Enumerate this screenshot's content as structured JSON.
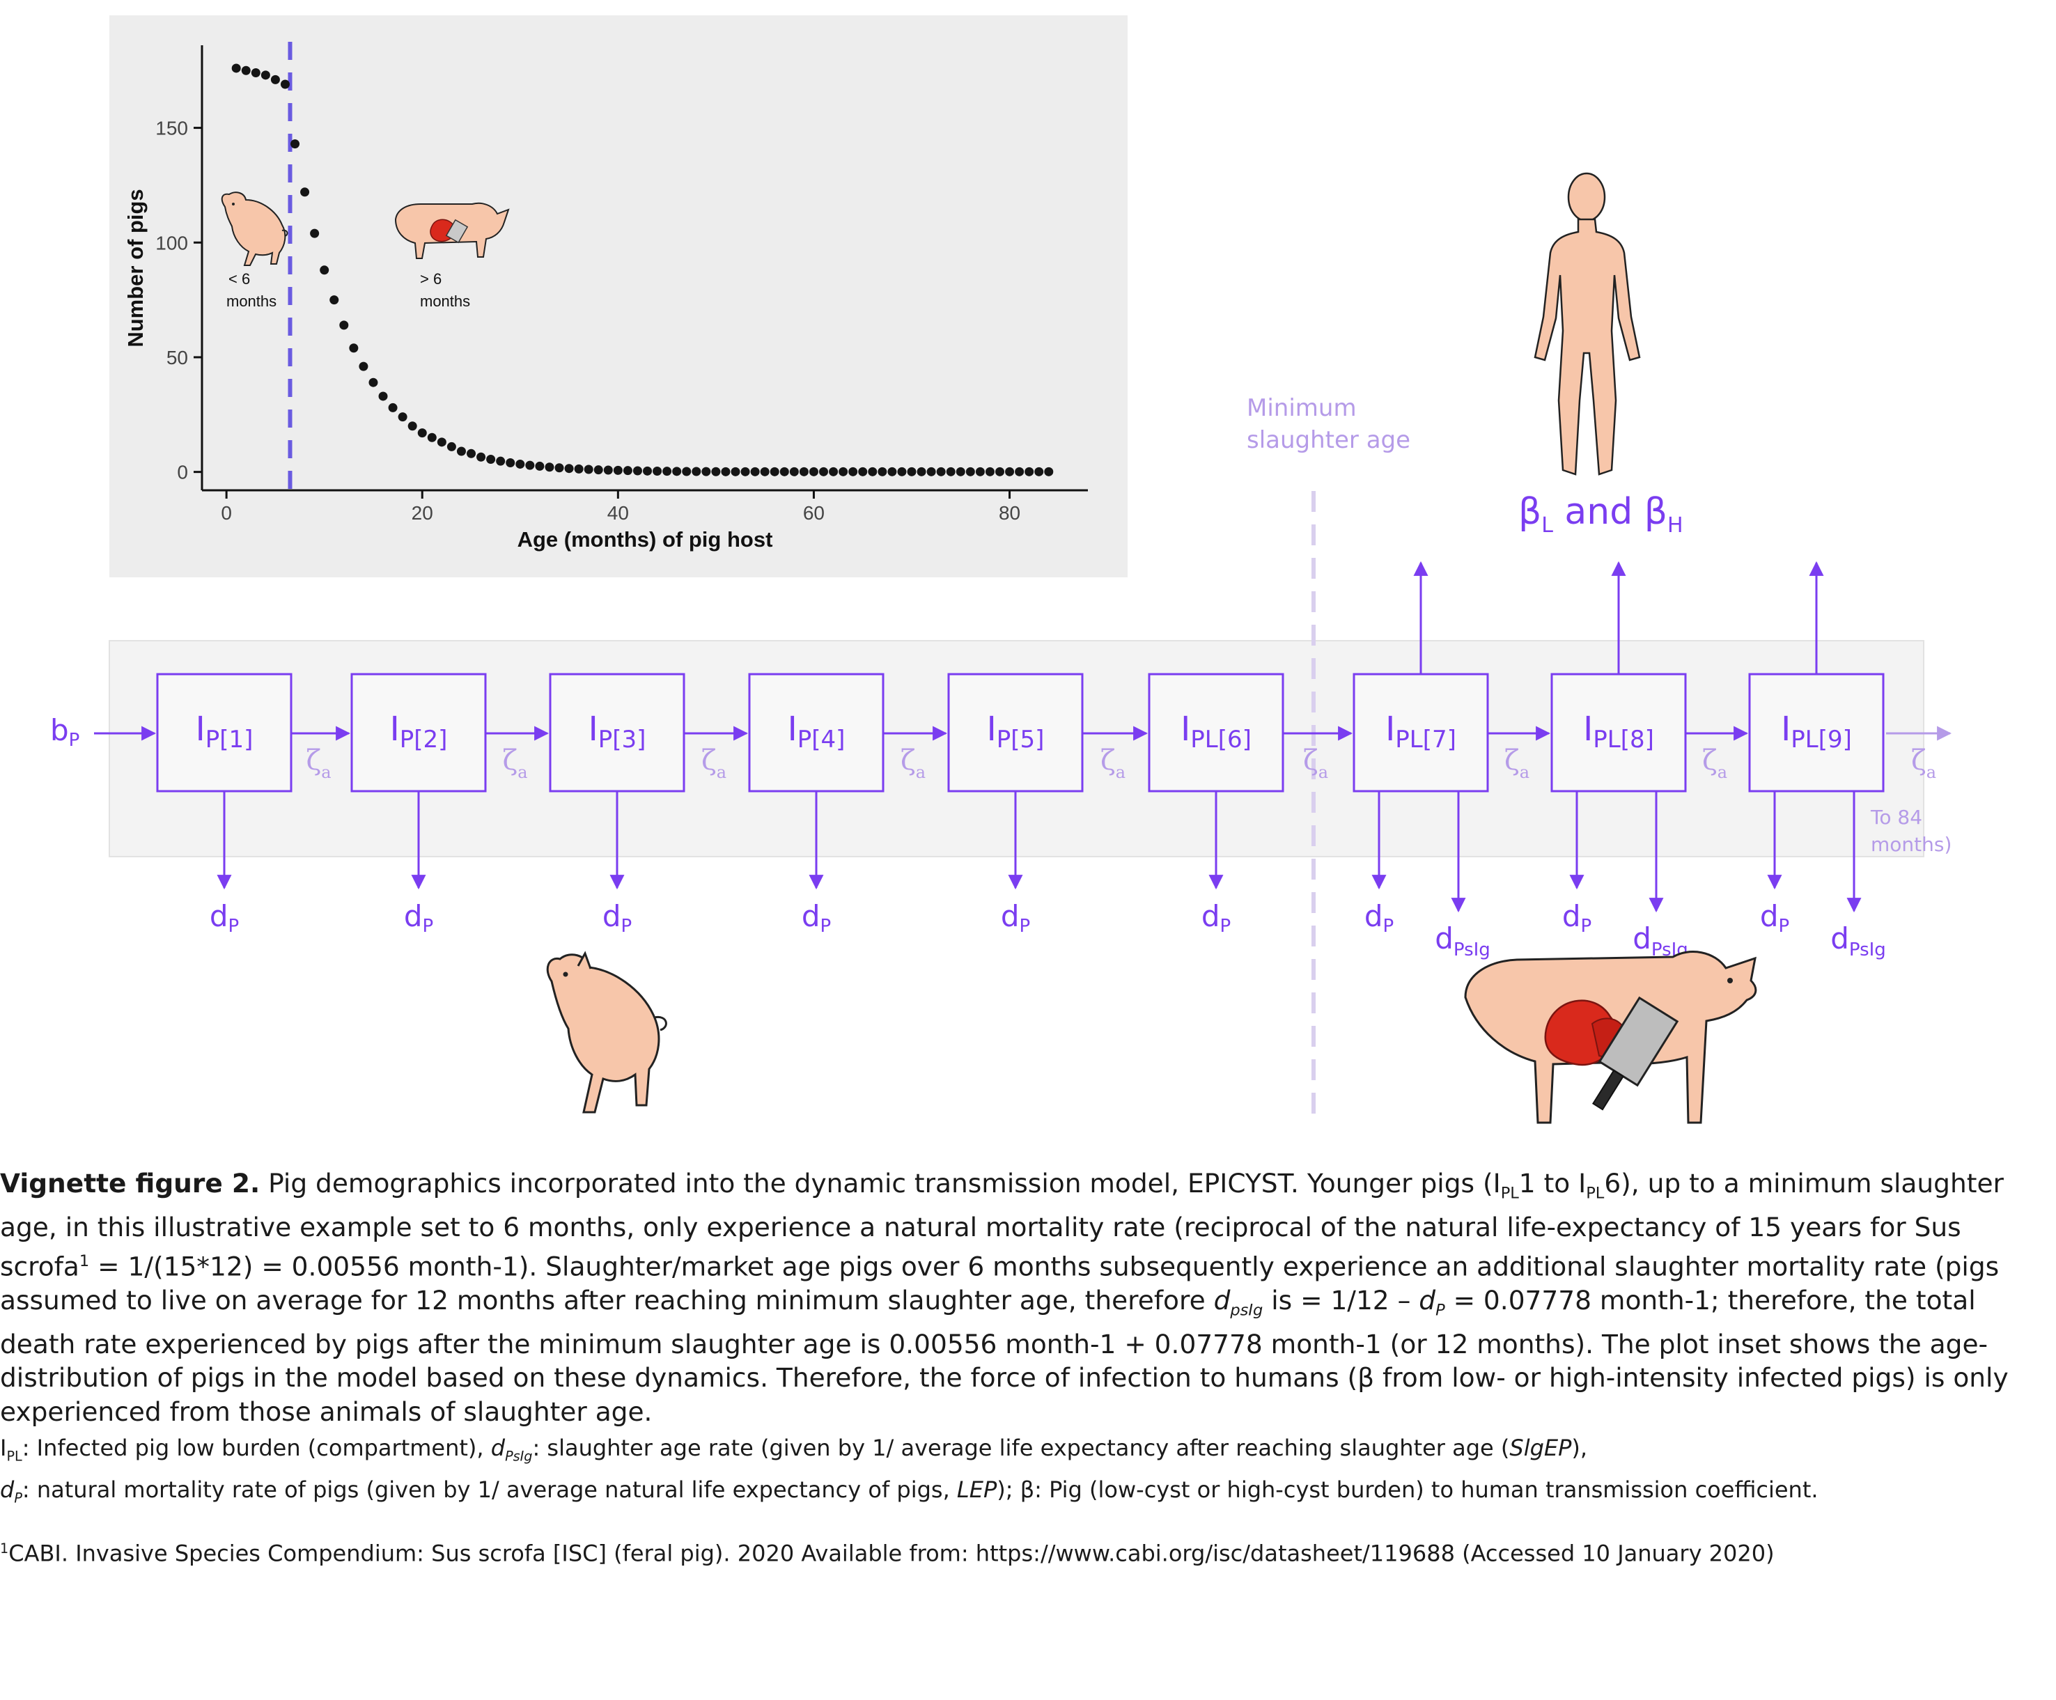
{
  "colors": {
    "purple": "#7a3df0",
    "light_purple": "#b59be8",
    "dashed_line": "#6a5be0",
    "panel_bg": "#ededed",
    "strip_bg": "#f3f3f3",
    "pig_skin": "#f7c6aa",
    "meat": "#d9291c"
  },
  "chart_data": {
    "type": "scatter",
    "title": "",
    "xlabel": "Age (months) of pig host",
    "ylabel": "Number of pigs",
    "xlim": [
      -2.5,
      88
    ],
    "ylim": [
      -8,
      186
    ],
    "xticks": [
      "0",
      "20",
      "40",
      "60",
      "80"
    ],
    "yticks": [
      "0",
      "50",
      "100",
      "150"
    ],
    "vline": {
      "x": 6.5,
      "style": "dashed"
    },
    "x": [
      1,
      2,
      3,
      4,
      5,
      6,
      7,
      8,
      9,
      10,
      11,
      12,
      13,
      14,
      15,
      16,
      17,
      18,
      19,
      20,
      21,
      22,
      23,
      24,
      25,
      26,
      27,
      28,
      29,
      30,
      31,
      32,
      33,
      34,
      35,
      36,
      37,
      38,
      39,
      40,
      41,
      42,
      43,
      44,
      45,
      46,
      47,
      48,
      49,
      50,
      51,
      52,
      53,
      54,
      55,
      56,
      57,
      58,
      59,
      60,
      61,
      62,
      63,
      64,
      65,
      66,
      67,
      68,
      69,
      70,
      71,
      72,
      73,
      74,
      75,
      76,
      77,
      78,
      79,
      80,
      81,
      82,
      83,
      84
    ],
    "y": [
      176,
      175,
      174,
      173,
      171,
      169,
      143,
      122,
      104,
      88,
      75,
      64,
      54,
      46,
      39,
      33,
      28,
      24,
      20,
      17,
      15,
      13,
      11,
      9,
      8,
      6.5,
      5.5,
      4.7,
      4,
      3.4,
      2.9,
      2.5,
      2.1,
      1.8,
      1.5,
      1.3,
      1.1,
      0.9,
      0.8,
      0.7,
      0.6,
      0.5,
      0.4,
      0.35,
      0.3,
      0.25,
      0.2,
      0.2,
      0.15,
      0.12,
      0.1,
      0.1,
      0.1,
      0.1,
      0.1,
      0.1,
      0.1,
      0.1,
      0.1,
      0.1,
      0.1,
      0.1,
      0.1,
      0.1,
      0.1,
      0.1,
      0.1,
      0.1,
      0.1,
      0.1,
      0.1,
      0.1,
      0.1,
      0.1,
      0.1,
      0.1,
      0.1,
      0.1,
      0.1,
      0.1,
      0.1,
      0.1,
      0.1,
      0.1
    ],
    "annotations": [
      {
        "text_line1": "< 6",
        "text_line2": "months"
      },
      {
        "text_line1": "> 6",
        "text_line2": "months"
      }
    ]
  },
  "diagram": {
    "inflow_label": "b",
    "inflow_sub": "P",
    "compartments": [
      {
        "main": "I",
        "sub": "P[1]"
      },
      {
        "main": "I",
        "sub": "P[2]"
      },
      {
        "main": "I",
        "sub": "P[3]"
      },
      {
        "main": "I",
        "sub": "P[4]"
      },
      {
        "main": "I",
        "sub": "P[5]"
      },
      {
        "main": "I",
        "sub": "PL[6]"
      },
      {
        "main": "I",
        "sub": "PL[7]"
      },
      {
        "main": "I",
        "sub": "PL[8]"
      },
      {
        "main": "I",
        "sub": "PL[9]"
      }
    ],
    "transition_symbol": "ζ",
    "transition_sub": "a",
    "death_label": "d",
    "death_sub": "P",
    "slaughter_label": "d",
    "slaughter_sub": "PsIg",
    "min_slaughter_line1": "Minimum",
    "min_slaughter_line2": "slaughter age",
    "to84_line1": "To 84",
    "to84_line2": "months)",
    "beta_text": "β",
    "beta_sub_L": "L",
    "beta_and": " and ",
    "beta_sub_H": "H"
  },
  "caption": {
    "lead": "Vignette figure 2.",
    "t1": " Pig demographics incorporated into the dynamic transmission model, EPICYST. Younger pigs (I",
    "t1_sub": "PL",
    "t2": "1 to I",
    "t2_sub": "PL",
    "t3": "6), up to a minimum slaughter age, in this illustrative example set to 6 months, only experience a natural mortality rate (reciprocal of the natural life-expectancy of 15 years for Sus scrofa",
    "t3_sup": "1",
    "t4": " = 1/(15*12) = 0.00556 month-1). Slaughter/market age pigs over 6 months subsequently experience an additional slaughter mortality rate (pigs assumed to live on average for 12 months after reaching minimum slaughter age, therefore ",
    "t4_var": "d",
    "t4_var_sub": "psIg",
    "t5": " is = 1/12 – ",
    "t5_var": "d",
    "t5_var_sub": "P",
    "t6": " = 0.07778 month-1; therefore, the total death rate experienced by pigs after the minimum slaughter age is 0.00556 month-1 + 0.07778 month-1 (or 12 months). The plot inset shows the age-distribution of pigs in the model based on these dynamics. Therefore, the force of infection to humans (β from low- or high-intensity infected pigs) is only experienced from those animals of slaughter age."
  },
  "notes": {
    "n1_main": "I",
    "n1_sub": "PL",
    "n1_text": ": Infected pig low burden (compartment), ",
    "n1_var": "d",
    "n1_var_sub": "PsIg",
    "n1_text2": ": slaughter age rate (given by 1/ average life expectancy after reaching slaughter age (",
    "n1_abbr": "SlgEP",
    "n1_end": "),",
    "n2_var": "d",
    "n2_var_sub": "P",
    "n2_text": ": natural mortality rate of pigs (given by 1/ average natural life expectancy of pigs, ",
    "n2_abbr": "LEP",
    "n2_end": "); β: Pig (low-cyst or high-cyst burden) to human transmission coefficient."
  },
  "reference": {
    "sup": "1",
    "text": "CABI. Invasive Species Compendium: Sus scrofa [ISC] (feral pig). 2020 Available from: https://www.cabi.org/isc/datasheet/119688 (Accessed 10 January 2020)"
  }
}
